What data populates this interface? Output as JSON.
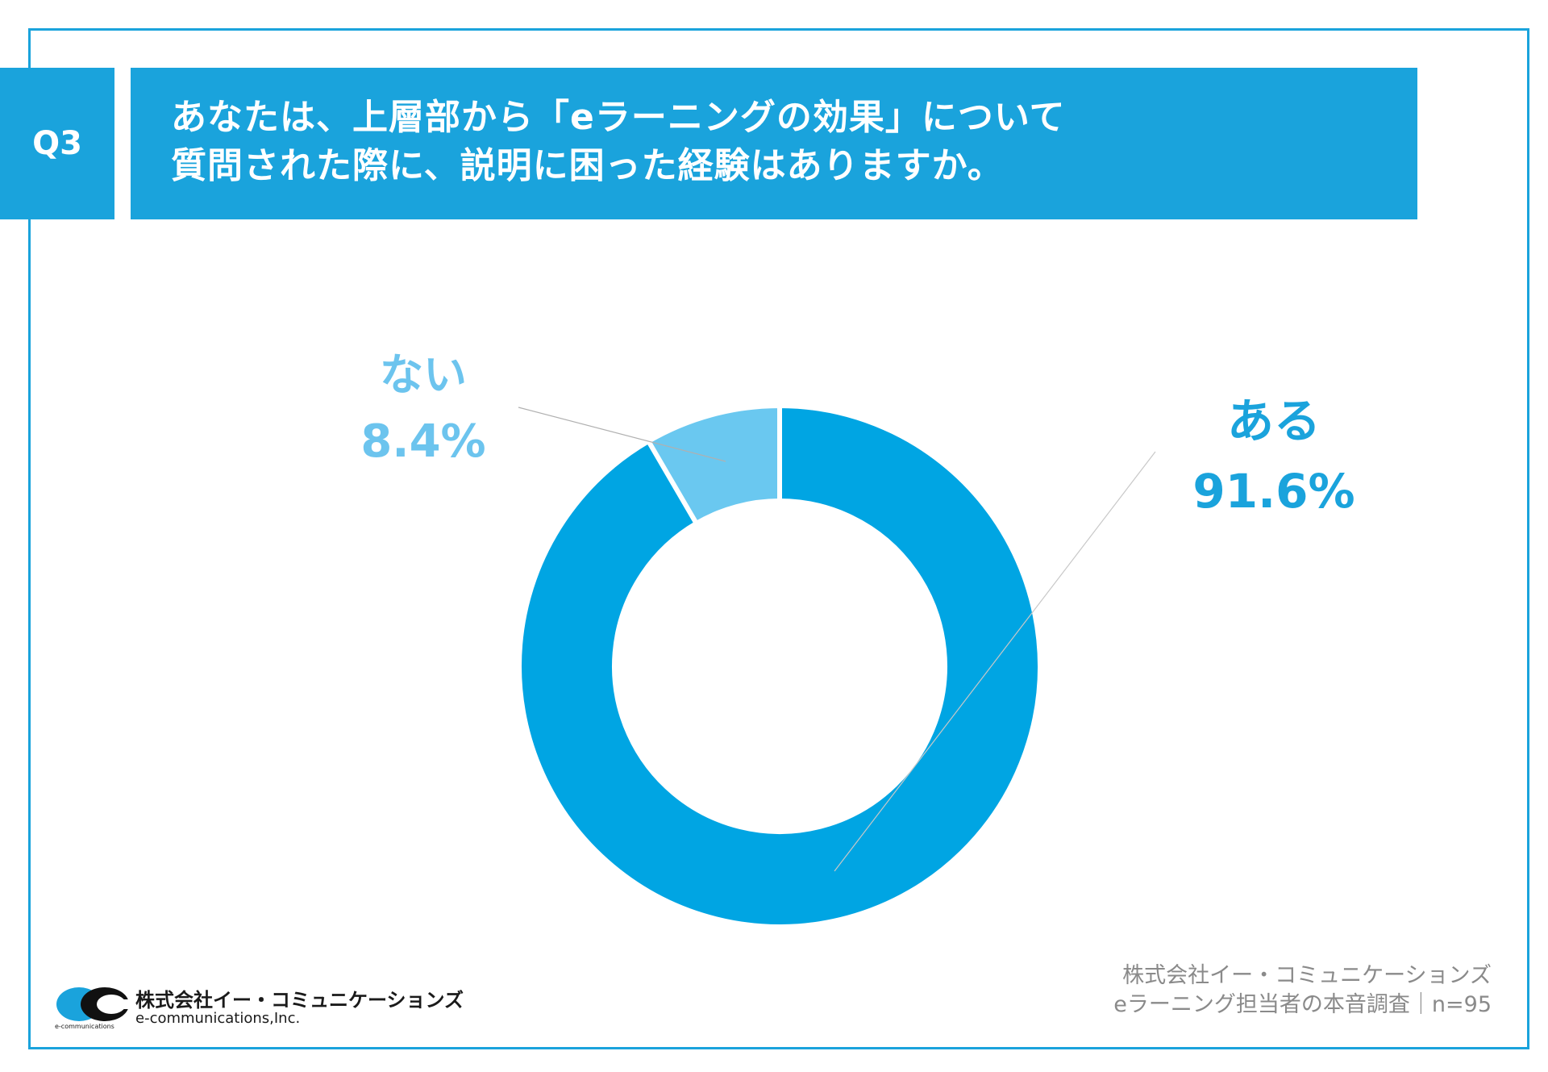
{
  "question": {
    "badge": "Q3",
    "line1": "あなたは、上層部から「eラーニングの効果」について",
    "line2": "質問された際に、説明に困った経験はありますか。"
  },
  "colors": {
    "primary": "#1aa3dc",
    "light": "#6cc4ee",
    "yes": "#00a5e3",
    "no": "#6ac8f0"
  },
  "chart_data": {
    "type": "pie",
    "variant": "donut",
    "categories": [
      "ある",
      "ない"
    ],
    "values": [
      91.6,
      8.4
    ],
    "value_labels": [
      "91.6%",
      "8.4%"
    ],
    "title": "あなたは、上層部から「eラーニングの効果」について質問された際に、説明に困った経験はありますか。",
    "legend": "none"
  },
  "labels": {
    "yes_name": "ある",
    "yes_value": "91.6%",
    "no_name": "ない",
    "no_value": "8.4%"
  },
  "source": {
    "line1": "株式会社イー・コミュニケーションズ",
    "line2": "eラーニング担当者の本音調査｜n=95"
  },
  "logo": {
    "company_jp": "株式会社イー・コミュニケーションズ",
    "company_en": "e-communications,Inc.",
    "tagline": "e-communications"
  }
}
